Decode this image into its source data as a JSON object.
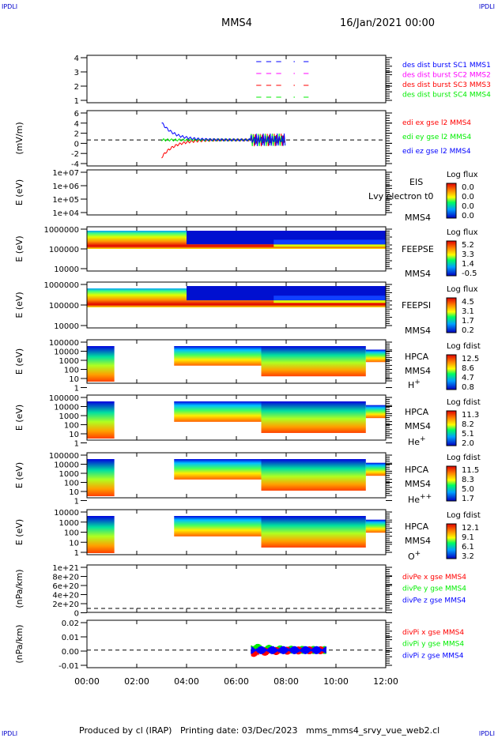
{
  "header": {
    "mission": "MMS4",
    "date": "16/Jan/2021 00:00",
    "corner_tag": "IPDLI"
  },
  "footer": {
    "produced": "Produced by cl (IRAP)",
    "printing": "Printing date: 03/Dec/2023",
    "file": "mms_mms4_srvy_vue_web2.cl"
  },
  "colors": {
    "red": "#ff0000",
    "green": "#00ee00",
    "blue": "#0000ff",
    "magenta": "#ff00ff"
  },
  "chart_data": [
    {
      "type": "line",
      "id": "burst",
      "ylabel": "",
      "yticks": [
        "1",
        "2",
        "3",
        "4"
      ],
      "ylim": [
        0.7,
        4.3
      ],
      "legend": [
        {
          "label": "des dist burst SC1 MMS1",
          "color": "#0000ff"
        },
        {
          "label": "des dist burst SC2 MMS2",
          "color": "#ff00ff"
        },
        {
          "label": "des dist burst SC3 MMS3",
          "color": "#ff0000"
        },
        {
          "label": "des dist burst SC4 MMS4",
          "color": "#00ee00"
        }
      ],
      "segments_hours": [
        [
          6.8,
          7.0
        ],
        [
          7.2,
          7.4
        ],
        [
          7.6,
          7.8
        ],
        [
          8.3,
          8.35
        ],
        [
          8.7,
          8.9
        ]
      ]
    },
    {
      "type": "line",
      "id": "edi",
      "ylabel": "(mV/m)",
      "yticks": [
        "-4",
        "-2",
        "0",
        "2",
        "4",
        "6"
      ],
      "ylim": [
        -5,
        6.5
      ],
      "legend": [
        {
          "label": "edi ex gse l2 MMS4",
          "color": "#ff0000"
        },
        {
          "label": "edi ey gse l2 MMS4",
          "color": "#00ee00"
        },
        {
          "label": "edi ez gse l2 MMS4",
          "color": "#0000ff"
        }
      ],
      "data_span_hours": [
        3.0,
        8.0
      ]
    },
    {
      "type": "heatmap",
      "id": "eis",
      "ylabel": "E (eV)",
      "yticks": [
        "1e+04",
        "1e+05",
        "1e+06",
        "1e+07"
      ],
      "instrument": "EIS",
      "species": "Lvy electron t0",
      "sc": "MMS4",
      "cbar_title": "Log flux",
      "cbar_ticks": [
        "0.0",
        "0.0",
        "0.0",
        "0.0"
      ]
    },
    {
      "type": "heatmap",
      "id": "feepse",
      "ylabel": "E (eV)",
      "yticks": [
        "10000",
        "100000",
        "1000000"
      ],
      "instrument": "FEEPSE",
      "species": "",
      "sc": "MMS4",
      "cbar_title": "Log flux",
      "cbar_ticks": [
        "5.2",
        "3.3",
        "1.4",
        "-0.5"
      ]
    },
    {
      "type": "heatmap",
      "id": "feepsi",
      "ylabel": "E (eV)",
      "yticks": [
        "10000",
        "100000",
        "1000000"
      ],
      "instrument": "FEEPSI",
      "species": "",
      "sc": "MMS4",
      "cbar_title": "Log flux",
      "cbar_ticks": [
        "4.5",
        "3.1",
        "1.7",
        "0.2"
      ]
    },
    {
      "type": "heatmap",
      "id": "hpca_h",
      "ylabel": "E (eV)",
      "yticks": [
        "1",
        "10",
        "100",
        "1000",
        "10000",
        "100000"
      ],
      "instrument": "HPCA",
      "species": "H",
      "charge": "+",
      "sc": "MMS4",
      "cbar_title": "Log fdist",
      "cbar_ticks": [
        "12.5",
        "8.6",
        "4.7",
        "0.8"
      ]
    },
    {
      "type": "heatmap",
      "id": "hpca_he",
      "ylabel": "E (eV)",
      "yticks": [
        "1",
        "10",
        "100",
        "1000",
        "10000",
        "100000"
      ],
      "instrument": "HPCA",
      "species": "He",
      "charge": "+",
      "sc": "MMS4",
      "cbar_title": "Log fdist",
      "cbar_ticks": [
        "11.3",
        "8.2",
        "5.1",
        "2.0"
      ]
    },
    {
      "type": "heatmap",
      "id": "hpca_hepp",
      "ylabel": "E (eV)",
      "yticks": [
        "1",
        "10",
        "100",
        "1000",
        "10000",
        "100000"
      ],
      "instrument": "HPCA",
      "species": "He",
      "charge": "++",
      "sc": "MMS4",
      "cbar_title": "Log fdist",
      "cbar_ticks": [
        "11.5",
        "8.3",
        "5.0",
        "1.7"
      ]
    },
    {
      "type": "heatmap",
      "id": "hpca_o",
      "ylabel": "E (eV)",
      "yticks": [
        "1",
        "10",
        "100",
        "1000",
        "10000"
      ],
      "instrument": "HPCA",
      "species": "O",
      "charge": "+",
      "sc": "MMS4",
      "cbar_title": "Log fdist",
      "cbar_ticks": [
        "12.1",
        "9.1",
        "6.1",
        "3.2"
      ]
    },
    {
      "type": "line",
      "id": "divpe",
      "ylabel": "(nPa/km)",
      "yticks": [
        "0",
        "2e+20",
        "4e+20",
        "6e+20",
        "8e+20",
        "1e+21"
      ],
      "ylim": [
        -1e+19,
        1.05e+21
      ],
      "legend": [
        {
          "label": "divPe x gse MMS4",
          "color": "#ff0000"
        },
        {
          "label": "divPe y gse MMS4",
          "color": "#00ee00"
        },
        {
          "label": "divPe z gse MMS4",
          "color": "#0000ff"
        }
      ]
    },
    {
      "type": "line",
      "id": "divpi",
      "ylabel": "(nPa/km)",
      "yticks": [
        "-0.01",
        "0.00",
        "0.01",
        "0.02"
      ],
      "ylim": [
        -0.015,
        0.024
      ],
      "legend": [
        {
          "label": "divPi x gse MMS4",
          "color": "#ff0000"
        },
        {
          "label": "divPi y gse MMS4",
          "color": "#00ee00"
        },
        {
          "label": "divPi z gse MMS4",
          "color": "#0000ff"
        }
      ],
      "data_span_hours": [
        6.6,
        9.6
      ]
    }
  ],
  "xaxis": {
    "ticks": [
      "00:00",
      "02:00",
      "04:00",
      "06:00",
      "08:00",
      "10:00",
      "12:00"
    ],
    "xlim_hours": [
      0,
      12
    ]
  }
}
